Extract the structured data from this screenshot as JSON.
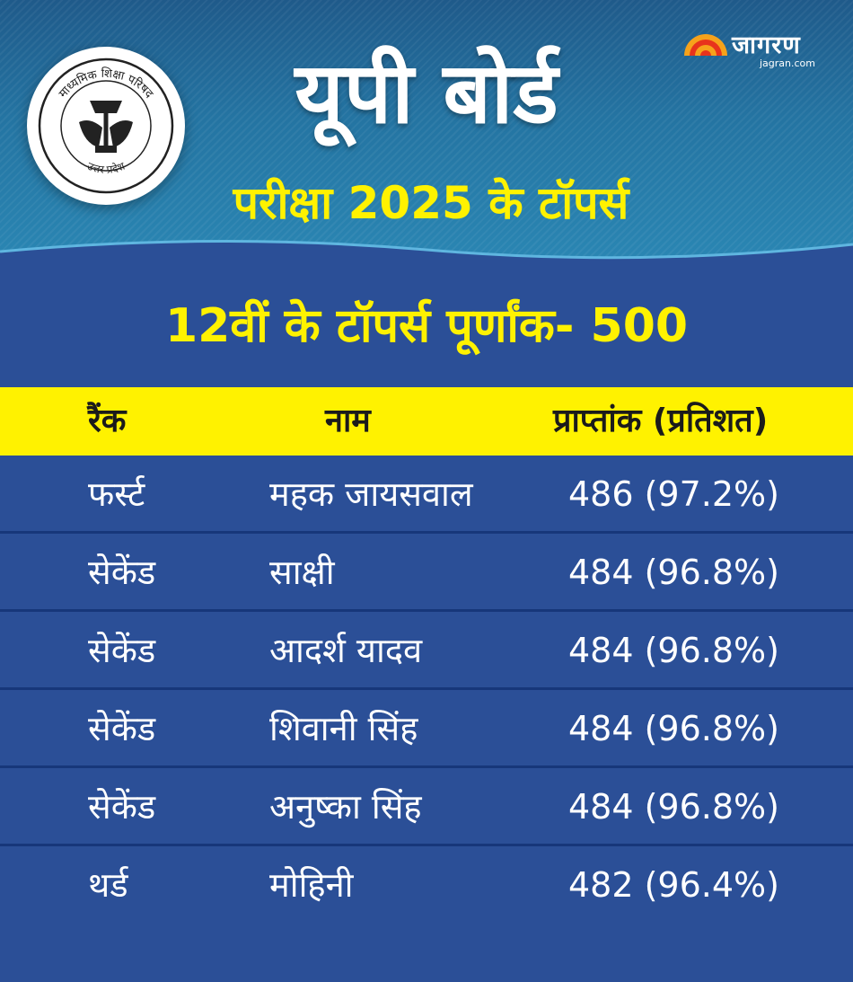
{
  "header": {
    "title": "यूपी बोर्ड",
    "subtitle": "परीक्षा 2025 के टॉपर्स",
    "logo_text_top": "माध्यमिक शिक्षा परिषद",
    "logo_text_bottom": "उत्तर प्रदेश",
    "logo_icon": "up-board-emblem-icon"
  },
  "brand": {
    "name": "जागरण",
    "url": "jagran.com",
    "icon": "rising-sun-icon",
    "accent": "#e8331c"
  },
  "section": {
    "title": "12वीं के टॉपर्स पूर्णांक- 500"
  },
  "table": {
    "headers": {
      "rank": "रैंक",
      "name": "नाम",
      "score": "प्राप्तांक (प्रतिशत)"
    },
    "rows": [
      {
        "rank": "फर्स्ट",
        "name": "महक जायसवाल",
        "score": "486 (97.2%)"
      },
      {
        "rank": "सेकेंड",
        "name": "साक्षी",
        "score": "484 (96.8%)"
      },
      {
        "rank": "सेकेंड",
        "name": "आदर्श यादव",
        "score": "484 (96.8%)"
      },
      {
        "rank": "सेकेंड",
        "name": "शिवानी सिंह",
        "score": "484 (96.8%)"
      },
      {
        "rank": "सेकेंड",
        "name": "अनुष्का सिंह",
        "score": "484 (96.8%)"
      },
      {
        "rank": "थर्ड",
        "name": "मोहिनी",
        "score": "482 (96.4%)"
      }
    ]
  },
  "colors": {
    "header_blue": "#2474a2",
    "body_blue": "#2b4f97",
    "highlight_yellow": "#fff200"
  }
}
